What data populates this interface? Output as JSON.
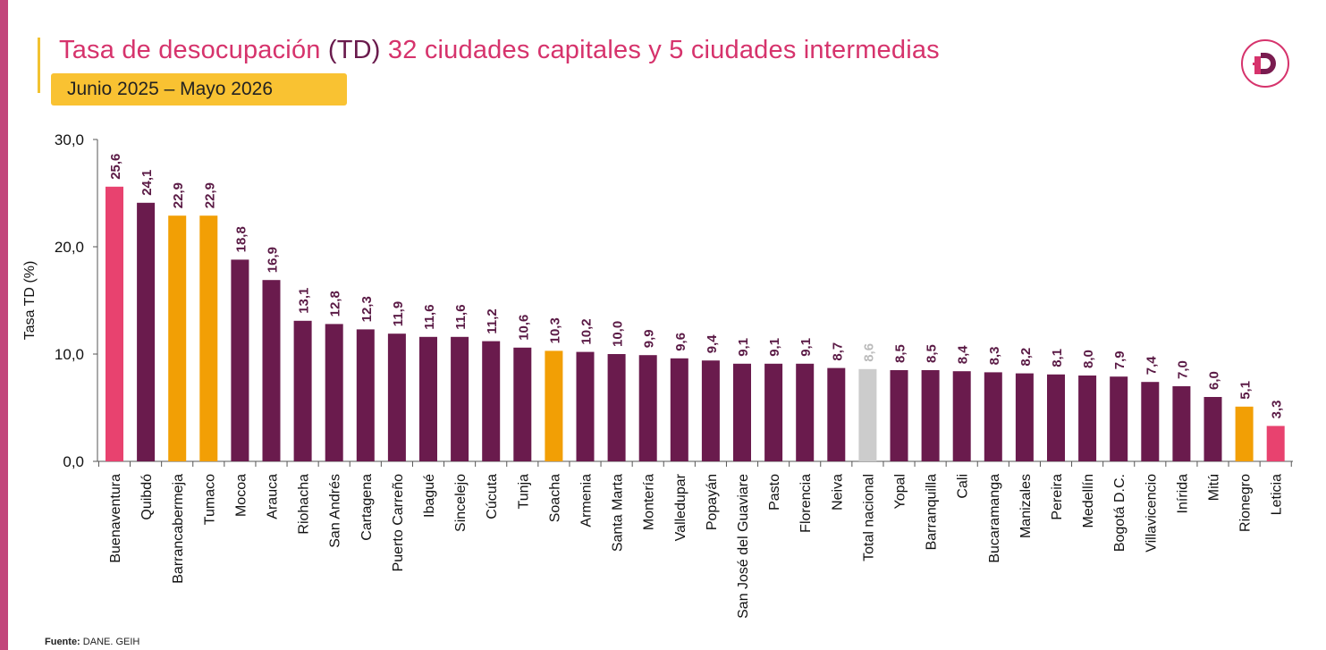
{
  "header": {
    "title_part1": "Tasa de desocupación",
    "title_part2": "(TD)",
    "title_part3": "32 ciudades capitales y 5 ciudades intermedias",
    "period": "Junio 2025 – Mayo 2026"
  },
  "logo": {
    "icon": "dane-d-logo-icon",
    "color": "#d6336c"
  },
  "source": {
    "label": "Fuente:",
    "text": "DANE. GEIH"
  },
  "colors": {
    "capital": "#6a1b4d",
    "intermediate": "#f29f05",
    "extreme": "#e8426f",
    "national": "#cccccc"
  },
  "chart_data": {
    "type": "bar",
    "title": "",
    "xlabel": "",
    "ylabel": "Tasa TD (%)",
    "ylim": [
      0,
      30
    ],
    "yticks": [
      "0,0",
      "10,0",
      "20,0",
      "30,0"
    ],
    "grid": false,
    "categories": [
      "Buenaventura",
      "Quibdó",
      "Barrancabermeja",
      "Tumaco",
      "Mocoa",
      "Arauca",
      "Riohacha",
      "San Andrés",
      "Cartagena",
      "Puerto Carreño",
      "Ibagué",
      "Sincelejo",
      "Cúcuta",
      "Tunja",
      "Soacha",
      "Armenia",
      "Santa Marta",
      "Montería",
      "Valledupar",
      "Popayán",
      "San José del Guaviare",
      "Pasto",
      "Florencia",
      "Neiva",
      "Total nacional",
      "Yopal",
      "Barranquilla",
      "Cali",
      "Bucaramanga",
      "Manizales",
      "Pereira",
      "Medellín",
      "Bogotá D.C.",
      "Villavicencio",
      "Inírida",
      "Mitú",
      "Rionegro",
      "Leticia"
    ],
    "values": [
      25.6,
      24.1,
      22.9,
      22.9,
      18.8,
      16.9,
      13.1,
      12.8,
      12.3,
      11.9,
      11.6,
      11.6,
      11.2,
      10.6,
      10.3,
      10.2,
      10.0,
      9.9,
      9.6,
      9.4,
      9.1,
      9.1,
      9.1,
      8.7,
      8.6,
      8.5,
      8.5,
      8.4,
      8.3,
      8.2,
      8.1,
      8.0,
      7.9,
      7.4,
      7.0,
      6.0,
      5.1,
      3.3
    ],
    "labels": [
      "25,6",
      "24,1",
      "22,9",
      "22,9",
      "18,8",
      "16,9",
      "13,1",
      "12,8",
      "12,3",
      "11,9",
      "11,6",
      "11,6",
      "11,2",
      "10,6",
      "10,3",
      "10,2",
      "10,0",
      "9,9",
      "9,6",
      "9,4",
      "9,1",
      "9,1",
      "9,1",
      "8,7",
      "8,6",
      "8,5",
      "8,5",
      "8,4",
      "8,3",
      "8,2",
      "8,1",
      "8,0",
      "7,9",
      "7,4",
      "7,0",
      "6,0",
      "5,1",
      "3,3"
    ],
    "groups": [
      "extreme",
      "capital",
      "intermediate",
      "intermediate",
      "capital",
      "capital",
      "capital",
      "capital",
      "capital",
      "capital",
      "capital",
      "capital",
      "capital",
      "capital",
      "intermediate",
      "capital",
      "capital",
      "capital",
      "capital",
      "capital",
      "capital",
      "capital",
      "capital",
      "capital",
      "national",
      "capital",
      "capital",
      "capital",
      "capital",
      "capital",
      "capital",
      "capital",
      "capital",
      "capital",
      "capital",
      "capital",
      "intermediate",
      "extreme"
    ]
  }
}
